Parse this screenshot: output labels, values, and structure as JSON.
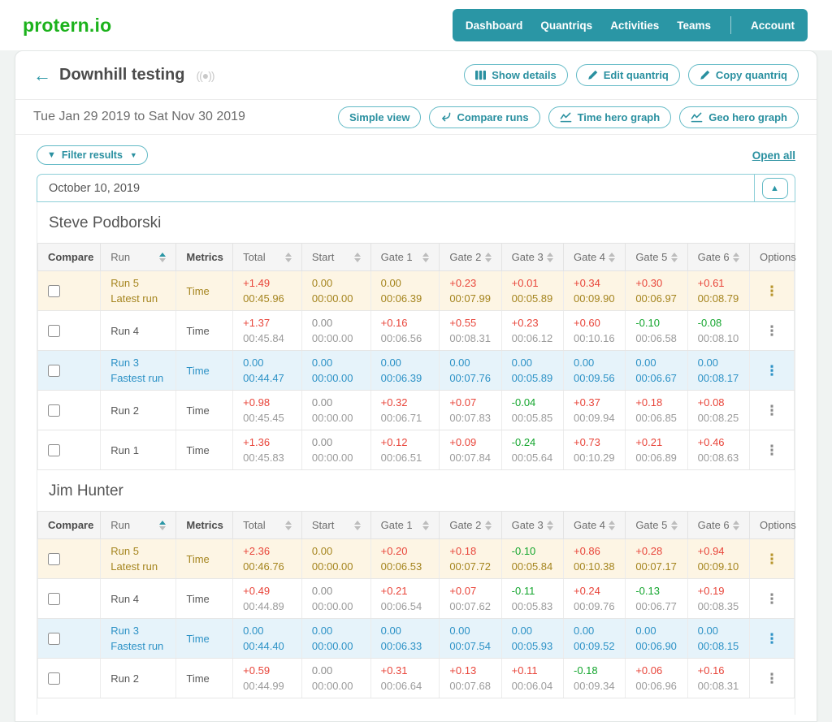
{
  "brand": "protern.io",
  "nav": {
    "items": [
      "Dashboard",
      "Quantriqs",
      "Activities",
      "Teams"
    ],
    "account": "Account"
  },
  "header": {
    "back_arrow": "←",
    "title": "Downhill testing",
    "buttons": {
      "show_details": "Show details",
      "edit_quantriq": "Edit quantriq",
      "copy_quantriq": "Copy quantriq"
    }
  },
  "toolbar": {
    "date_range": "Tue Jan 29 2019 to Sat Nov 30 2019",
    "buttons": {
      "simple_view": "Simple view",
      "compare_runs": "Compare runs",
      "time_hero_graph": "Time hero graph",
      "geo_hero_graph": "Geo hero graph"
    }
  },
  "filter": {
    "label": "Filter results",
    "open_all": "Open all"
  },
  "section": {
    "date": "October 10, 2019",
    "collapse_icon": "▲"
  },
  "table": {
    "columns": [
      {
        "label": "Compare",
        "sortable": false,
        "bold": true
      },
      {
        "label": "Run",
        "sortable": true,
        "sorted": "asc",
        "bold": false
      },
      {
        "label": "Metrics",
        "sortable": false,
        "bold": true
      },
      {
        "label": "Total",
        "sortable": true
      },
      {
        "label": "Start",
        "sortable": true
      },
      {
        "label": "Gate 1",
        "sortable": true
      },
      {
        "label": "Gate 2",
        "sortable": true
      },
      {
        "label": "Gate 3",
        "sortable": true
      },
      {
        "label": "Gate 4",
        "sortable": true
      },
      {
        "label": "Gate 5",
        "sortable": true
      },
      {
        "label": "Gate 6",
        "sortable": true
      },
      {
        "label": "Options",
        "sortable": false
      }
    ]
  },
  "athletes": [
    {
      "name": "Steve Podborski",
      "runs": [
        {
          "run": "Run 5",
          "tag": "Latest run",
          "metric": "Time",
          "type": "latest",
          "values": [
            [
              "+1.49",
              "00:45.96"
            ],
            [
              "0.00",
              "00:00.00"
            ],
            [
              "0.00",
              "00:06.39"
            ],
            [
              "+0.23",
              "00:07.99"
            ],
            [
              "+0.01",
              "00:05.89"
            ],
            [
              "+0.34",
              "00:09.90"
            ],
            [
              "+0.30",
              "00:06.97"
            ],
            [
              "+0.61",
              "00:08.79"
            ]
          ]
        },
        {
          "run": "Run 4",
          "tag": "",
          "metric": "Time",
          "type": "normal",
          "values": [
            [
              "+1.37",
              "00:45.84"
            ],
            [
              "0.00",
              "00:00.00"
            ],
            [
              "+0.16",
              "00:06.56"
            ],
            [
              "+0.55",
              "00:08.31"
            ],
            [
              "+0.23",
              "00:06.12"
            ],
            [
              "+0.60",
              "00:10.16"
            ],
            [
              "-0.10",
              "00:06.58"
            ],
            [
              "-0.08",
              "00:08.10"
            ]
          ]
        },
        {
          "run": "Run 3",
          "tag": "Fastest run",
          "metric": "Time",
          "type": "fastest",
          "values": [
            [
              "0.00",
              "00:44.47"
            ],
            [
              "0.00",
              "00:00.00"
            ],
            [
              "0.00",
              "00:06.39"
            ],
            [
              "0.00",
              "00:07.76"
            ],
            [
              "0.00",
              "00:05.89"
            ],
            [
              "0.00",
              "00:09.56"
            ],
            [
              "0.00",
              "00:06.67"
            ],
            [
              "0.00",
              "00:08.17"
            ]
          ]
        },
        {
          "run": "Run 2",
          "tag": "",
          "metric": "Time",
          "type": "normal",
          "values": [
            [
              "+0.98",
              "00:45.45"
            ],
            [
              "0.00",
              "00:00.00"
            ],
            [
              "+0.32",
              "00:06.71"
            ],
            [
              "+0.07",
              "00:07.83"
            ],
            [
              "-0.04",
              "00:05.85"
            ],
            [
              "+0.37",
              "00:09.94"
            ],
            [
              "+0.18",
              "00:06.85"
            ],
            [
              "+0.08",
              "00:08.25"
            ]
          ]
        },
        {
          "run": "Run 1",
          "tag": "",
          "metric": "Time",
          "type": "normal",
          "values": [
            [
              "+1.36",
              "00:45.83"
            ],
            [
              "0.00",
              "00:00.00"
            ],
            [
              "+0.12",
              "00:06.51"
            ],
            [
              "+0.09",
              "00:07.84"
            ],
            [
              "-0.24",
              "00:05.64"
            ],
            [
              "+0.73",
              "00:10.29"
            ],
            [
              "+0.21",
              "00:06.89"
            ],
            [
              "+0.46",
              "00:08.63"
            ]
          ]
        }
      ]
    },
    {
      "name": "Jim Hunter",
      "runs": [
        {
          "run": "Run 5",
          "tag": "Latest run",
          "metric": "Time",
          "type": "latest",
          "values": [
            [
              "+2.36",
              "00:46.76"
            ],
            [
              "0.00",
              "00:00.00"
            ],
            [
              "+0.20",
              "00:06.53"
            ],
            [
              "+0.18",
              "00:07.72"
            ],
            [
              "-0.10",
              "00:05.84"
            ],
            [
              "+0.86",
              "00:10.38"
            ],
            [
              "+0.28",
              "00:07.17"
            ],
            [
              "+0.94",
              "00:09.10"
            ]
          ]
        },
        {
          "run": "Run 4",
          "tag": "",
          "metric": "Time",
          "type": "normal",
          "values": [
            [
              "+0.49",
              "00:44.89"
            ],
            [
              "0.00",
              "00:00.00"
            ],
            [
              "+0.21",
              "00:06.54"
            ],
            [
              "+0.07",
              "00:07.62"
            ],
            [
              "-0.11",
              "00:05.83"
            ],
            [
              "+0.24",
              "00:09.76"
            ],
            [
              "-0.13",
              "00:06.77"
            ],
            [
              "+0.19",
              "00:08.35"
            ]
          ]
        },
        {
          "run": "Run 3",
          "tag": "Fastest run",
          "metric": "Time",
          "type": "fastest",
          "values": [
            [
              "0.00",
              "00:44.40"
            ],
            [
              "0.00",
              "00:00.00"
            ],
            [
              "0.00",
              "00:06.33"
            ],
            [
              "0.00",
              "00:07.54"
            ],
            [
              "0.00",
              "00:05.93"
            ],
            [
              "0.00",
              "00:09.52"
            ],
            [
              "0.00",
              "00:06.90"
            ],
            [
              "0.00",
              "00:08.15"
            ]
          ]
        },
        {
          "run": "Run 2",
          "tag": "",
          "metric": "Time",
          "type": "normal",
          "values": [
            [
              "+0.59",
              "00:44.99"
            ],
            [
              "0.00",
              "00:00.00"
            ],
            [
              "+0.31",
              "00:06.64"
            ],
            [
              "+0.13",
              "00:07.68"
            ],
            [
              "+0.11",
              "00:06.04"
            ],
            [
              "-0.18",
              "00:09.34"
            ],
            [
              "+0.06",
              "00:06.96"
            ],
            [
              "+0.16",
              "00:08.31"
            ]
          ]
        }
      ]
    }
  ],
  "colors": {
    "brand_green": "#1cb21c",
    "accent_teal": "#2a96a5",
    "delta_positive_red": "#e8453a",
    "delta_negative_green": "#13a52d",
    "latest_row_bg": "#fdf5e4",
    "latest_row_text": "#a5851f",
    "fastest_row_bg": "#e6f3fa",
    "fastest_row_text": "#2d92c6"
  }
}
